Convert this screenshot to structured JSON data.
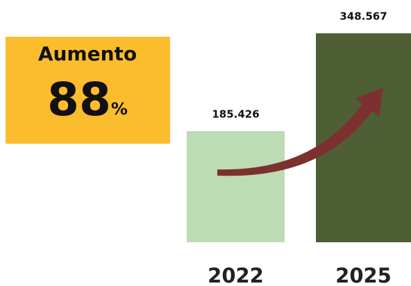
{
  "chart_data": {
    "type": "bar",
    "categories": [
      "2022",
      "2025"
    ],
    "values": [
      185426,
      348567
    ],
    "value_labels": [
      "185.426",
      "348.567"
    ],
    "colors": [
      "#bcdcb4",
      "#4e5e35"
    ],
    "annotation": {
      "title": "Aumento",
      "value": 88,
      "unit": "%"
    }
  }
}
